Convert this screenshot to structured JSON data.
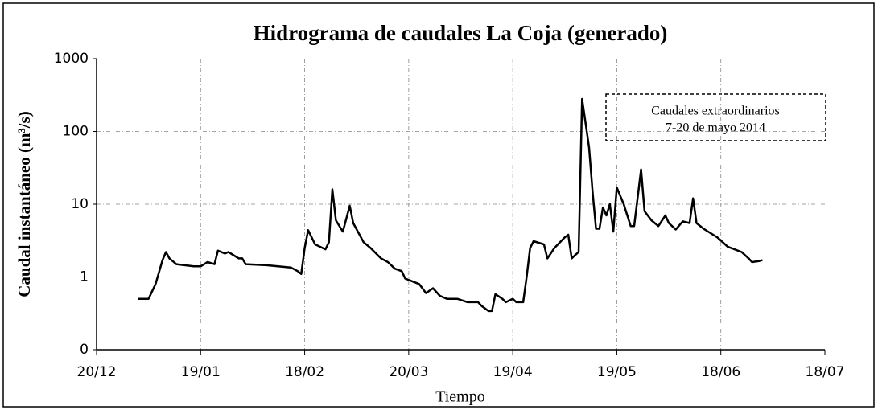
{
  "chart_data": {
    "type": "line",
    "title": "Hidrograma de caudales La Coja (generado)",
    "x_label": "Tiempo",
    "y_label": "Caudal instantáneo  (m³/s)",
    "annotation": [
      "Caudales extraordinarios",
      "7-20 de mayo 2014"
    ],
    "log_y": true,
    "grid": true,
    "xlim": [
      "20/12",
      "18/07"
    ],
    "xticks": [
      "20/12",
      "19/01",
      "18/02",
      "20/03",
      "19/04",
      "19/05",
      "18/06",
      "18/07"
    ],
    "ylim": [
      0.1,
      1000
    ],
    "yticks": [
      {
        "value": 0.1,
        "label": "0"
      },
      1,
      10,
      100,
      1000
    ],
    "x": [
      "01/01",
      "04/01",
      "06/01",
      "08/01",
      "09/01",
      "10/01",
      "12/01",
      "17/01",
      "19/01",
      "21/01",
      "23/01",
      "24/01",
      "26/01",
      "27/01",
      "30/01",
      "31/01",
      "01/02",
      "07/02",
      "14/02",
      "16/02",
      "17/02",
      "18/02",
      "19/02",
      "21/02",
      "24/02",
      "25/02",
      "26/02",
      "27/02",
      "01/03",
      "03/03",
      "04/03",
      "07/03",
      "09/03",
      "12/03",
      "14/03",
      "16/03",
      "18/03",
      "19/03",
      "23/03",
      "25/03",
      "27/03",
      "29/03",
      "31/03",
      "03/04",
      "06/04",
      "09/04",
      "10/04",
      "12/04",
      "13/04",
      "14/04",
      "16/04",
      "17/04",
      "19/04",
      "20/04",
      "22/04",
      "23/04",
      "24/04",
      "25/04",
      "28/04",
      "29/04",
      "01/05",
      "04/05",
      "05/05",
      "06/05",
      "07/05",
      "08/05",
      "09/05",
      "11/05",
      "12/05",
      "13/05",
      "14/05",
      "15/05",
      "16/05",
      "17/05",
      "18/05",
      "19/05",
      "21/05",
      "23/05",
      "24/05",
      "26/05",
      "27/05",
      "29/05",
      "31/05",
      "02/06",
      "03/06",
      "05/06",
      "07/06",
      "09/06",
      "10/06",
      "11/06",
      "13/06",
      "17/06",
      "20/06",
      "24/06",
      "26/06",
      "27/06",
      "29/06",
      "30/06"
    ],
    "series": [
      {
        "color": "#000000",
        "values": [
          0.5,
          0.5,
          0.8,
          1.7,
          2.2,
          1.8,
          1.5,
          1.4,
          1.4,
          1.6,
          1.5,
          2.3,
          2.1,
          2.2,
          1.8,
          1.8,
          1.5,
          1.45,
          1.35,
          1.2,
          1.1,
          2.5,
          4.4,
          2.8,
          2.4,
          3.0,
          16,
          6,
          4.2,
          9.5,
          5.5,
          3.0,
          2.5,
          1.8,
          1.6,
          1.3,
          1.2,
          0.95,
          0.8,
          0.6,
          0.7,
          0.55,
          0.5,
          0.5,
          0.45,
          0.45,
          0.4,
          0.34,
          0.34,
          0.58,
          0.5,
          0.45,
          0.5,
          0.45,
          0.45,
          1.0,
          2.5,
          3.1,
          2.8,
          1.8,
          2.5,
          3.5,
          3.8,
          1.8,
          2.0,
          2.2,
          280,
          60,
          15,
          4.6,
          4.6,
          9,
          7,
          10,
          4.2,
          17,
          10,
          5.0,
          5.0,
          30,
          8,
          6,
          5,
          7,
          5.5,
          4.5,
          5.8,
          5.5,
          12,
          5.5,
          4.6,
          3.5,
          2.6,
          2.2,
          1.8,
          1.6,
          1.65,
          1.7
        ]
      }
    ]
  }
}
